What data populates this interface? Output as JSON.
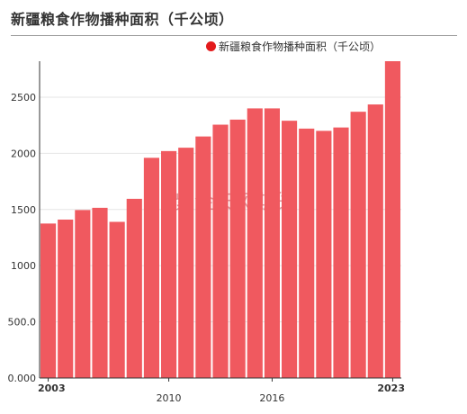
{
  "title": "新疆粮食作物播种面积（千公顷）",
  "watermark": "紫金天风期货",
  "colors": {
    "bar": "#f0595f",
    "legend_dot": "#e31a1c",
    "grid": "#e6e6e6",
    "axis": "#333333",
    "watermark": "#c04048"
  },
  "chart_data": {
    "type": "bar",
    "title": "新疆粮食作物播种面积（千公顷）",
    "xlabel": "",
    "ylabel": "",
    "legend_placement": "top-right",
    "grid": true,
    "ylim": [
      0,
      2820
    ],
    "y_ticks": [
      0,
      500,
      1000,
      1500,
      2000,
      2500
    ],
    "y_tick_labels": [
      "0.000",
      "500.0",
      "1000",
      "1500",
      "2000",
      "2500"
    ],
    "x_tick_labels": [
      {
        "year": 2003,
        "label": "2003",
        "bold": true
      },
      {
        "year": 2010,
        "label": "2010",
        "bold": false
      },
      {
        "year": 2016,
        "label": "2016",
        "bold": false
      },
      {
        "year": 2023,
        "label": "2023",
        "bold": true
      }
    ],
    "categories": [
      2003,
      2004,
      2005,
      2006,
      2007,
      2008,
      2009,
      2010,
      2011,
      2012,
      2013,
      2014,
      2015,
      2016,
      2017,
      2018,
      2019,
      2020,
      2021,
      2022,
      2023
    ],
    "series": [
      {
        "name": "新疆粮食作物播种面积（千公顷）",
        "values": [
          1375,
          1410,
          1495,
          1515,
          1390,
          1595,
          1960,
          2020,
          2050,
          2150,
          2255,
          2300,
          2400,
          2400,
          2290,
          2220,
          2200,
          2230,
          2370,
          2435,
          2820
        ]
      }
    ]
  }
}
